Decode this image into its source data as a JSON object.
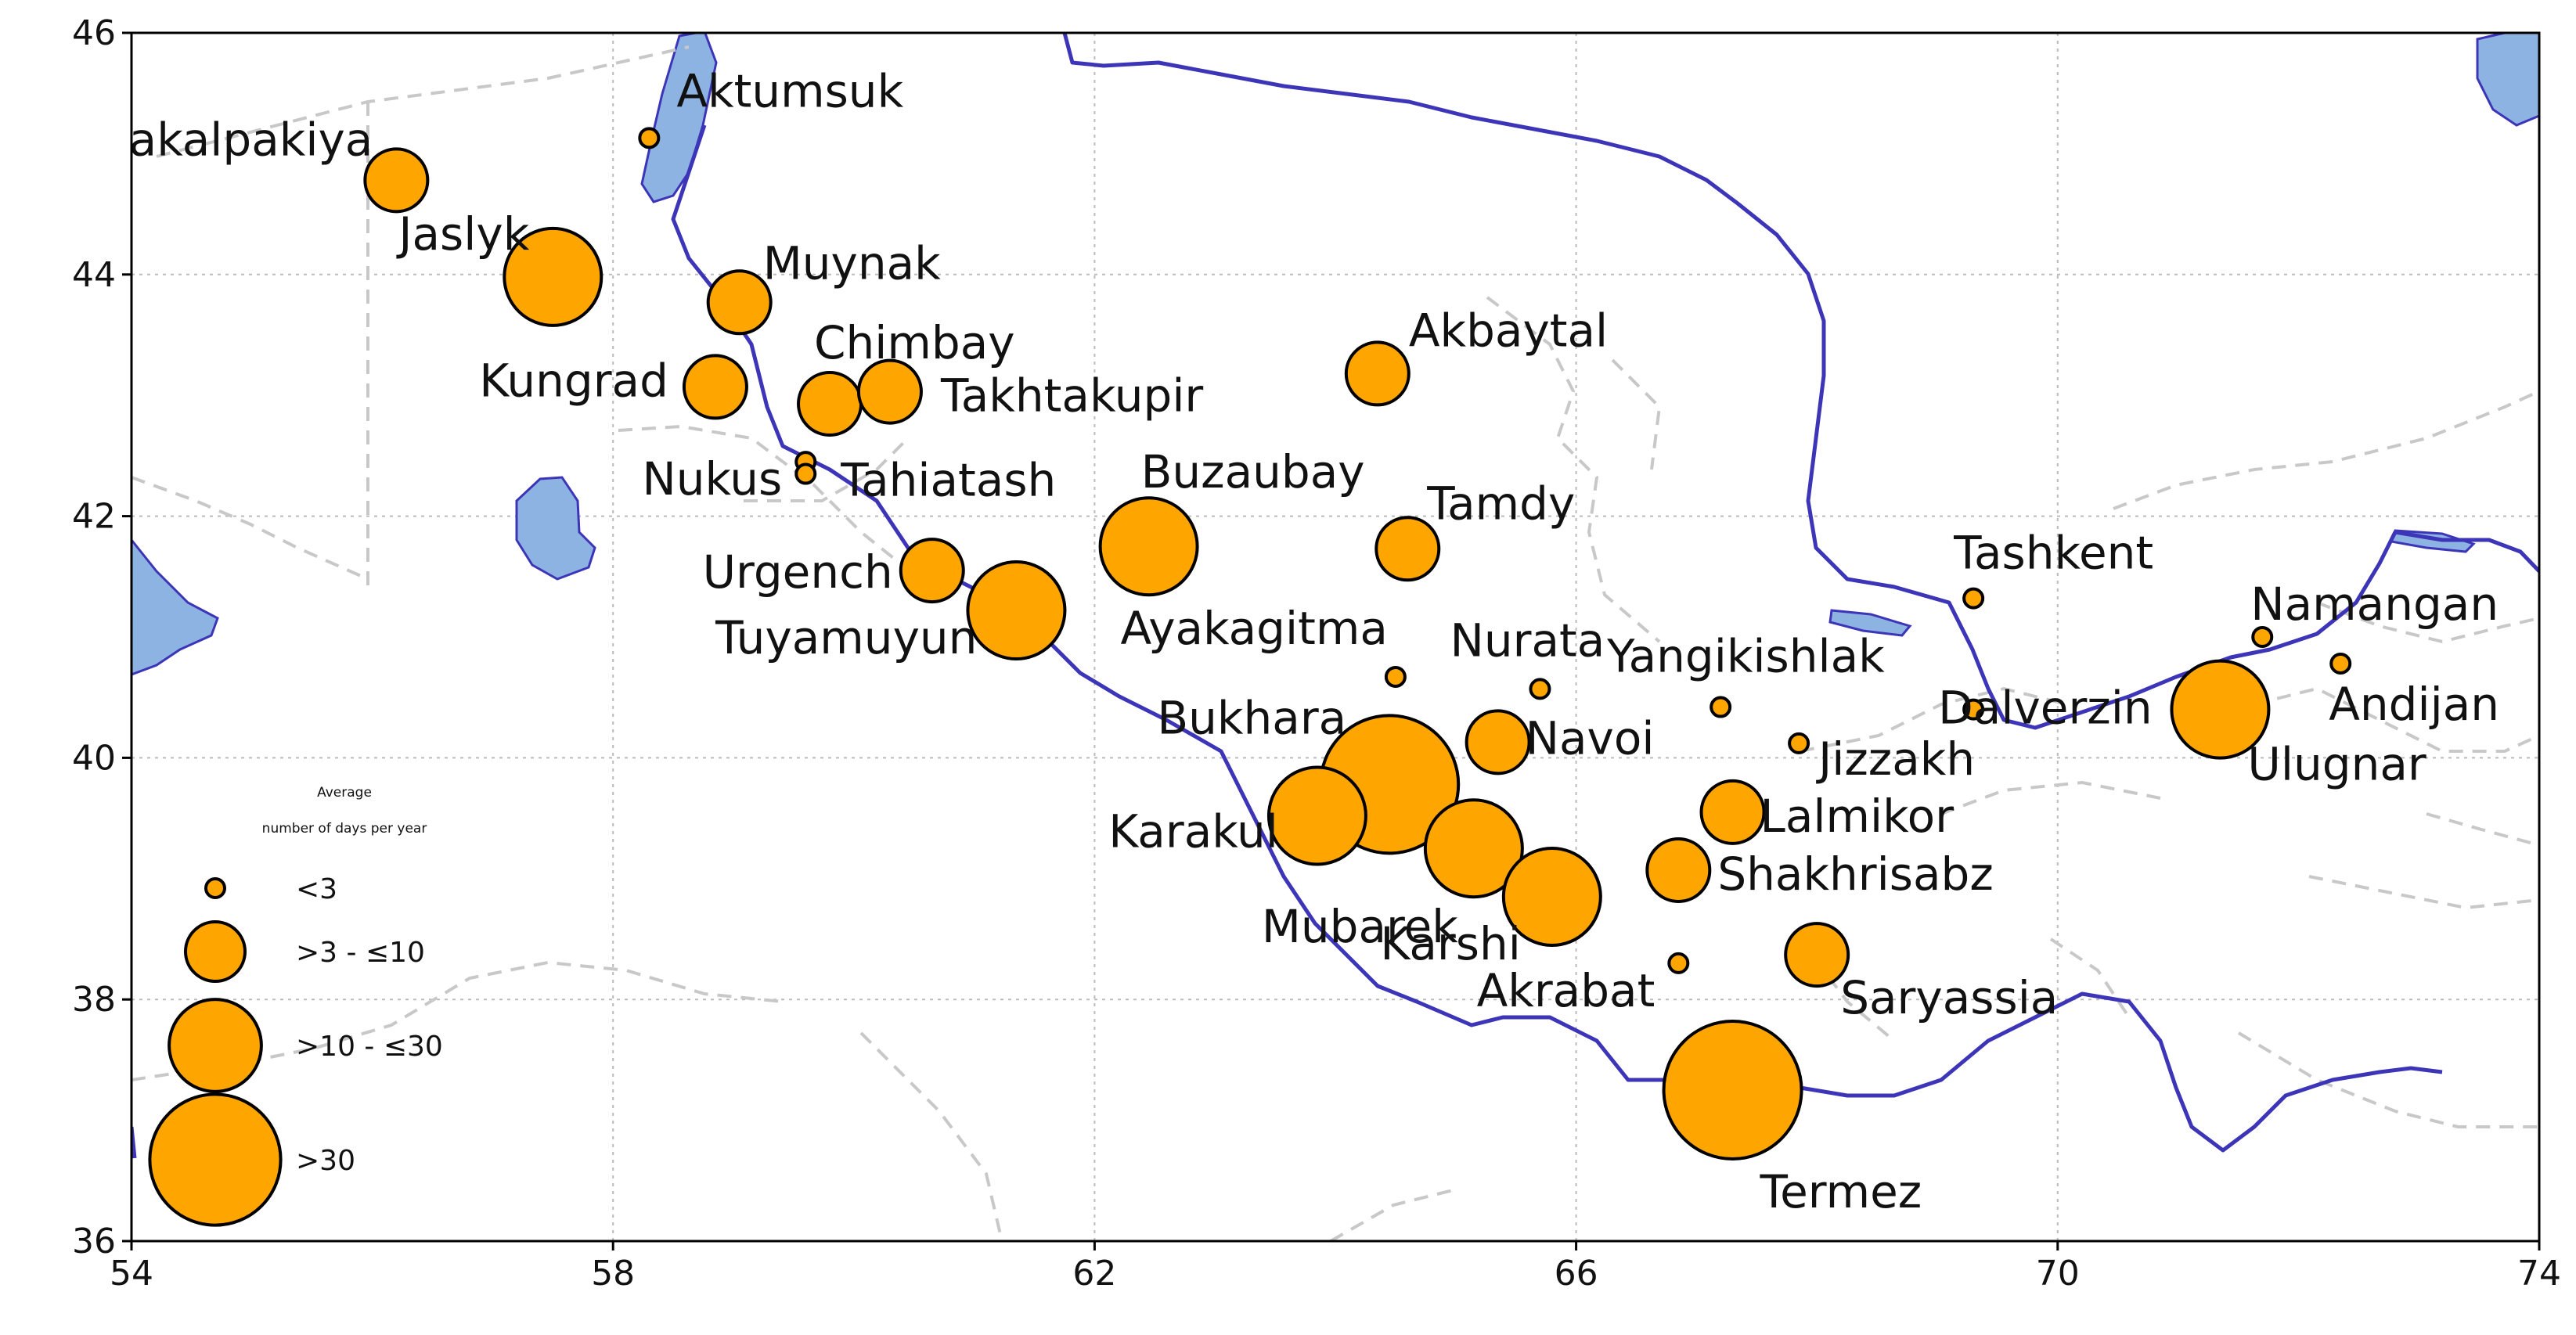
{
  "map": {
    "x_ticks": [
      "54",
      "58",
      "62",
      "66",
      "70",
      "74"
    ],
    "y_ticks": [
      "46",
      "44",
      "42",
      "40",
      "38",
      "36"
    ],
    "xlim": [
      54,
      74
    ],
    "ylim": [
      36,
      46
    ],
    "grid": true
  },
  "legend": {
    "title_line1": "Average",
    "title_line2": "number of days per year",
    "placement": "bottom-left",
    "items": [
      {
        "label": "<3",
        "size_class": 0
      },
      {
        "label": ">3 - ≤10",
        "size_class": 1
      },
      {
        "label": ">10 - ≤30",
        "size_class": 2
      },
      {
        "label": ">30",
        "size_class": 3
      }
    ]
  },
  "colors": {
    "marker_fill": "#FFA500",
    "marker_stroke": "#000000",
    "water": "#8DB3E2",
    "border": "#3D35B8",
    "admin": "#C8C8C8",
    "grid": "#BBBBBB"
  },
  "stations": [
    {
      "name": "Karakalpakiya",
      "lon": 56.2,
      "lat": 44.78,
      "size_class": 1
    },
    {
      "name": "Aktumsuk",
      "lon": 58.3,
      "lon_label": 58.3,
      "lat": 45.13,
      "size_class": 0
    },
    {
      "name": "Jaslyk",
      "lon": 57.5,
      "lat": 43.98,
      "size_class": 2
    },
    {
      "name": "Muynak",
      "lon": 59.05,
      "lat": 43.77,
      "size_class": 1
    },
    {
      "name": "Kungrad",
      "lon": 58.85,
      "lat": 43.07,
      "size_class": 1
    },
    {
      "name": "Chimbay",
      "lon": 59.8,
      "lat": 42.93,
      "size_class": 1
    },
    {
      "name": "Takhtakupir",
      "lon": 60.3,
      "lat": 43.03,
      "size_class": 1
    },
    {
      "name": "Akbaytal",
      "lon": 64.35,
      "lat": 43.18,
      "size_class": 1
    },
    {
      "name": "Nukus",
      "lon": 59.6,
      "lat": 42.45,
      "size_class": 0
    },
    {
      "name": "Tahiatash",
      "lon": 59.6,
      "lat": 42.35,
      "size_class": 0
    },
    {
      "name": "Buzaubay",
      "lon": 62.45,
      "lat": 41.75,
      "size_class": 2
    },
    {
      "name": "Tamdy",
      "lon": 64.6,
      "lat": 41.73,
      "size_class": 1
    },
    {
      "name": "Urgench",
      "lon": 60.65,
      "lat": 41.55,
      "size_class": 1
    },
    {
      "name": "Tuyamuyun",
      "lon": 61.35,
      "lat": 41.22,
      "size_class": 2
    },
    {
      "name": "Tashkent",
      "lon": 69.3,
      "lat": 41.32,
      "size_class": 0
    },
    {
      "name": "Namangan",
      "lon": 71.7,
      "lat": 41.0,
      "size_class": 0
    },
    {
      "name": "Ayakagitma",
      "lon": 64.5,
      "lat": 40.67,
      "size_class": 0
    },
    {
      "name": "Nurata",
      "lon": 65.7,
      "lat": 40.57,
      "size_class": 0
    },
    {
      "name": "Yangikishlak",
      "lon": 67.2,
      "lat": 40.42,
      "size_class": 0
    },
    {
      "name": "Dalverzin",
      "lon": 69.3,
      "lat": 40.4,
      "size_class": 0
    },
    {
      "name": "Andijan",
      "lon": 72.35,
      "lat": 40.78,
      "size_class": 0
    },
    {
      "name": "Ulugnar",
      "lon": 71.35,
      "lat": 40.4,
      "size_class": 2
    },
    {
      "name": "Bukhara",
      "lon": 64.45,
      "lat": 39.78,
      "size_class": 3
    },
    {
      "name": "Navoi",
      "lon": 65.35,
      "lat": 40.13,
      "size_class": 1
    },
    {
      "name": "Jizzakh",
      "lon": 67.85,
      "lat": 40.12,
      "size_class": 0
    },
    {
      "name": "Karakul",
      "lon": 63.85,
      "lat": 39.52,
      "size_class": 2
    },
    {
      "name": "Lalmikor",
      "lon": 67.3,
      "lat": 39.55,
      "size_class": 1
    },
    {
      "name": "Mubarek",
      "lon": 65.15,
      "lat": 39.25,
      "size_class": 2
    },
    {
      "name": "Shakhrisabz",
      "lon": 66.85,
      "lat": 39.07,
      "size_class": 1
    },
    {
      "name": "Karshi",
      "lon": 65.8,
      "lat": 38.85,
      "size_class": 2
    },
    {
      "name": "Akrabat",
      "lon": 66.85,
      "lat": 38.3,
      "size_class": 0
    },
    {
      "name": "Saryassia",
      "lon": 68.0,
      "lat": 38.37,
      "size_class": 1
    },
    {
      "name": "Termez",
      "lon": 67.3,
      "lat": 37.25,
      "size_class": 3
    }
  ]
}
